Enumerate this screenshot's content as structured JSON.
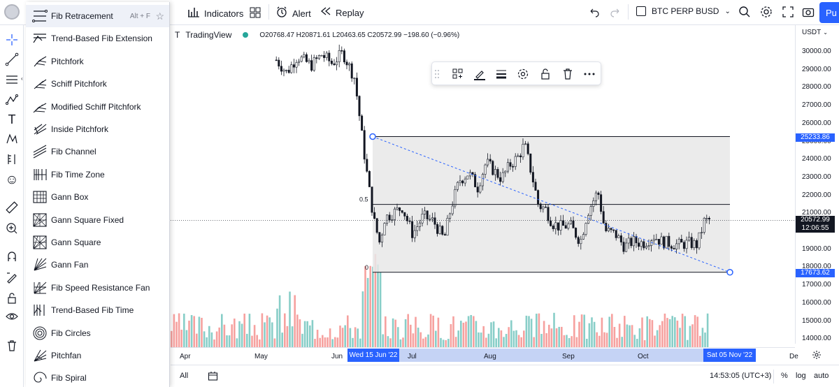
{
  "topbar": {
    "indicators_label": "Indicators",
    "alert_label": "Alert",
    "replay_label": "Replay",
    "symbol_label": "BTC PERP BUSD",
    "publish_label": "Pu"
  },
  "legend": {
    "source": "TradingView",
    "symbol_prefix": "T",
    "ohlc": "O20768.47 H20871.61 L20463.65 C20572.99 −198.60 (−0.96%)"
  },
  "menu": {
    "hotkey": "Alt + F",
    "items": [
      {
        "label": "Fib Retracement",
        "icon": "fib-retracement-icon"
      },
      {
        "label": "Trend-Based Fib Extension",
        "icon": "trend-fib-extension-icon"
      },
      {
        "label": "Pitchfork",
        "icon": "pitchfork-icon"
      },
      {
        "label": "Schiff Pitchfork",
        "icon": "schiff-pitchfork-icon"
      },
      {
        "label": "Modified Schiff Pitchfork",
        "icon": "modified-schiff-pitchfork-icon"
      },
      {
        "label": "Inside Pitchfork",
        "icon": "inside-pitchfork-icon"
      },
      {
        "label": "Fib Channel",
        "icon": "fib-channel-icon"
      },
      {
        "label": "Fib Time Zone",
        "icon": "fib-time-zone-icon"
      },
      {
        "label": "Gann Box",
        "icon": "gann-box-icon"
      },
      {
        "label": "Gann Square Fixed",
        "icon": "gann-square-fixed-icon"
      },
      {
        "label": "Gann Square",
        "icon": "gann-square-icon"
      },
      {
        "label": "Gann Fan",
        "icon": "gann-fan-icon"
      },
      {
        "label": "Fib Speed Resistance Fan",
        "icon": "fib-speed-fan-icon"
      },
      {
        "label": "Trend-Based Fib Time",
        "icon": "trend-fib-time-icon"
      },
      {
        "label": "Fib Circles",
        "icon": "fib-circles-icon"
      },
      {
        "label": "Pitchfan",
        "icon": "pitchfan-icon"
      },
      {
        "label": "Fib Spiral",
        "icon": "fib-spiral-icon"
      }
    ]
  },
  "price_scale": {
    "currency": "USDT",
    "labels": [
      "30000.00",
      "29000.00",
      "28000.00",
      "27000.00",
      "26000.00",
      "25000.00",
      "24000.00",
      "23000.00",
      "22000.00",
      "21000.00",
      "19000.00",
      "18000.00",
      "17000.00",
      "16000.00",
      "15000.00",
      "14000.00"
    ],
    "tag_high": "25233.86",
    "tag_price": "20572.99",
    "tag_time": "12:06:55",
    "tag_low": "17673.62"
  },
  "fib": {
    "label_half": "0.5",
    "label_zero": "0"
  },
  "time_scale": {
    "labels": [
      "Apr",
      "May",
      "Jun",
      "Jul",
      "Aug",
      "Sep",
      "Oct",
      "De"
    ],
    "start_tag": "Wed 15 Jun '22",
    "end_tag": "Sat 05 Nov '22"
  },
  "bottombar": {
    "all_label": "All",
    "clock": "14:53:05 (UTC+3)",
    "percent_label": "%",
    "log_label": "log",
    "auto_label": "auto"
  },
  "colors": {
    "accent": "#2962ff",
    "up": "#26a69a",
    "down": "#ef5350",
    "fib_fill": "#e8e8e8",
    "tag_blue": "#2962ff",
    "tag_dark": "#131722"
  }
}
